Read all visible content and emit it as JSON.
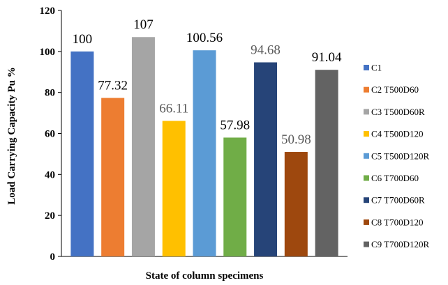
{
  "chart_data": {
    "type": "bar",
    "title": "",
    "xlabel": "State of column specimens",
    "ylabel": "Load Carrying Capacity Pu %",
    "ylim": [
      0,
      120
    ],
    "yticks": [
      0,
      20,
      40,
      60,
      80,
      100,
      120
    ],
    "grid": false,
    "legend_position": "right",
    "series": [
      {
        "name": "C1",
        "value": 100,
        "label": "100",
        "color": "#4472C4",
        "label_color": "#000000"
      },
      {
        "name": "C2 T500D60",
        "value": 77.32,
        "label": "77.32",
        "color": "#ED7D31",
        "label_color": "#000000"
      },
      {
        "name": "C3 T500D60R",
        "value": 107,
        "label": "107",
        "color": "#A5A5A5",
        "label_color": "#000000"
      },
      {
        "name": "C4 T500D120",
        "value": 66.11,
        "label": "66.11",
        "color": "#FFC000",
        "label_color": "#595959"
      },
      {
        "name": "C5 T500D120R",
        "value": 100.56,
        "label": "100.56",
        "color": "#5B9BD5",
        "label_color": "#000000"
      },
      {
        "name": "C6 T700D60",
        "value": 57.98,
        "label": "57.98",
        "color": "#70AD47",
        "label_color": "#000000"
      },
      {
        "name": "C7 T700D60R",
        "value": 94.68,
        "label": "94.68",
        "color": "#264478",
        "label_color": "#595959"
      },
      {
        "name": "C8 T700D120",
        "value": 50.98,
        "label": "50.98",
        "color": "#9E480E",
        "label_color": "#595959"
      },
      {
        "name": "C9 T700D120R",
        "value": 91.04,
        "label": "91.04",
        "color": "#636363",
        "label_color": "#000000"
      }
    ]
  }
}
